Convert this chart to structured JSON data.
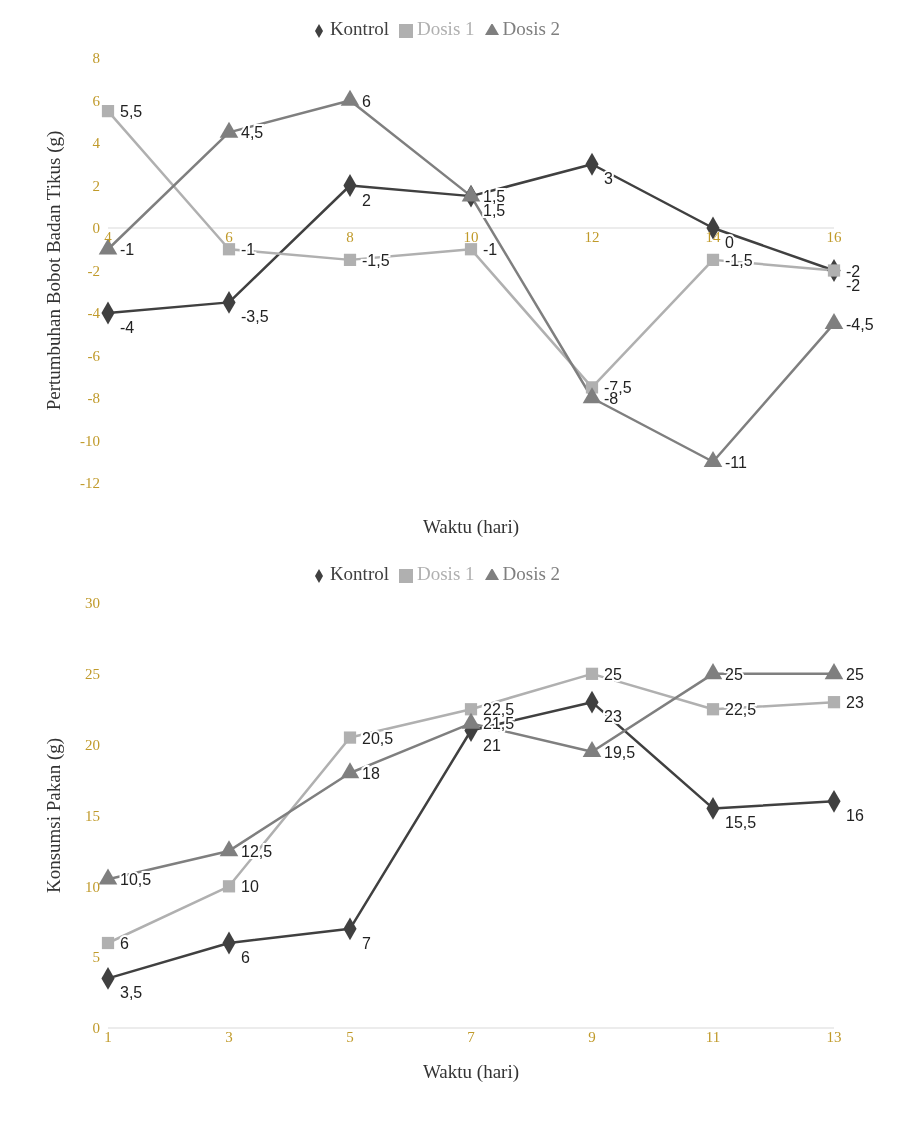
{
  "chart_data": [
    {
      "type": "line",
      "ylabel": "Pertumbuhan Bobot Badan Tikus (g)",
      "xlabel": "Waktu (hari)",
      "categories": [
        "4",
        "6",
        "8",
        "10",
        "12",
        "14",
        "16"
      ],
      "ylim": [
        -12,
        8
      ],
      "yticks": [
        -12,
        -10,
        -8,
        -6,
        -4,
        -2,
        0,
        2,
        4,
        6,
        8
      ],
      "grid": false,
      "legend": "top",
      "series": [
        {
          "name": "Kontrol",
          "color": "#404040",
          "marker": "diamond",
          "values": [
            -4,
            -3.5,
            2,
            1.5,
            3,
            0,
            -2
          ],
          "value_labels": [
            "-4",
            "-3,5",
            "2",
            "1,5",
            "3",
            "0",
            "-2"
          ]
        },
        {
          "name": "Dosis 1",
          "color": "#b0b0b0",
          "marker": "square",
          "values": [
            5.5,
            -1,
            -1.5,
            -1,
            -7.5,
            -1.5,
            -2
          ],
          "value_labels": [
            "5,5",
            "-1",
            "-1,5",
            "-1",
            "-7,5",
            "-1,5",
            "-2"
          ]
        },
        {
          "name": "Dosis 2",
          "color": "#7f7f7f",
          "marker": "triangle",
          "values": [
            -1,
            4.5,
            6,
            1.5,
            -8,
            -11,
            -4.5
          ],
          "value_labels": [
            "-1",
            "4,5",
            "6",
            "1,5",
            "-8",
            "-11",
            "-4,5"
          ]
        }
      ]
    },
    {
      "type": "line",
      "ylabel": "Konsumsi Pakan (g)",
      "xlabel": "Waktu (hari)",
      "categories": [
        "1",
        "3",
        "5",
        "7",
        "9",
        "11",
        "13"
      ],
      "ylim": [
        0,
        30
      ],
      "yticks": [
        0,
        5,
        10,
        15,
        20,
        25,
        30
      ],
      "grid": false,
      "legend": "top",
      "series": [
        {
          "name": "Kontrol",
          "color": "#404040",
          "marker": "diamond",
          "values": [
            3.5,
            6,
            7,
            21,
            23,
            15.5,
            16
          ],
          "value_labels": [
            "3,5",
            "6",
            "7",
            "21",
            "23",
            "15,5",
            "16"
          ]
        },
        {
          "name": "Dosis 1",
          "color": "#b0b0b0",
          "marker": "square",
          "values": [
            6,
            10,
            20.5,
            22.5,
            25,
            22.5,
            23
          ],
          "value_labels": [
            "6",
            "10",
            "20,5",
            "22,5",
            "25",
            "22,5",
            "23"
          ]
        },
        {
          "name": "Dosis 2",
          "color": "#7f7f7f",
          "marker": "triangle",
          "values": [
            10.5,
            12.5,
            18,
            21.5,
            19.5,
            25,
            25
          ],
          "value_labels": [
            "10,5",
            "12,5",
            "18",
            "21,5",
            "19,5",
            "25",
            "25"
          ]
        }
      ]
    }
  ]
}
